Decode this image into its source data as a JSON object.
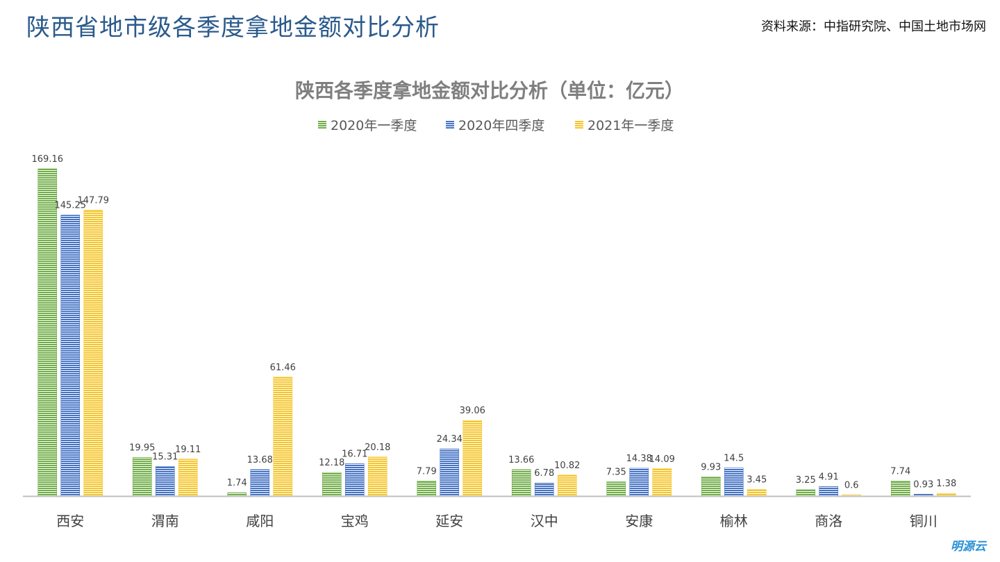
{
  "header": {
    "title": "陕西省地市级各季度拿地金额对比分析",
    "source": "资料来源：中指研究院、中国土地市场网"
  },
  "watermark": "明源云",
  "chart_data": {
    "type": "bar",
    "title": "陕西各季度拿地金额对比分析（单位：亿元）",
    "xlabel": "",
    "ylabel": "",
    "ylim": [
      0,
      169.16
    ],
    "grid": false,
    "legend_position": "top",
    "categories": [
      "西安",
      "渭南",
      "咸阳",
      "宝鸡",
      "延安",
      "汉中",
      "安康",
      "榆林",
      "商洛",
      "铜川"
    ],
    "series": [
      {
        "name": "2020年一季度",
        "color": "#70ad47",
        "values": [
          169.16,
          19.95,
          1.74,
          12.18,
          7.79,
          13.66,
          7.35,
          9.93,
          3.25,
          7.74
        ]
      },
      {
        "name": "2020年四季度",
        "color": "#4472c4",
        "values": [
          145.25,
          15.31,
          13.68,
          16.71,
          24.34,
          6.78,
          14.38,
          14.5,
          4.91,
          0.93
        ]
      },
      {
        "name": "2021年一季度",
        "color": "#f5c52a",
        "values": [
          147.79,
          19.11,
          61.46,
          20.18,
          39.06,
          10.82,
          14.09,
          3.45,
          0.6,
          1.38
        ]
      }
    ]
  }
}
